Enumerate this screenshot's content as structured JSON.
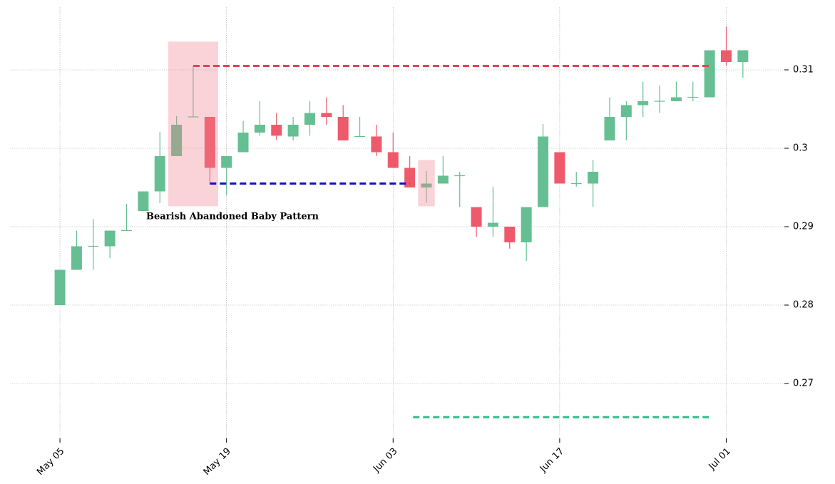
{
  "chart_data": {
    "type": "candlestick",
    "annotation": "Bearish Abandoned Baby Pattern",
    "categories": [
      "May 05",
      null,
      null,
      null,
      null,
      null,
      null,
      null,
      null,
      null,
      "May 19",
      null,
      null,
      null,
      null,
      null,
      null,
      null,
      null,
      null,
      "Jun 03",
      null,
      null,
      null,
      null,
      null,
      null,
      null,
      null,
      null,
      "Jun 17",
      null,
      null,
      null,
      null,
      null,
      null,
      null,
      null,
      null,
      "Jul 01",
      null
    ],
    "open": [
      0.28,
      0.2845,
      0.2875,
      0.2875,
      0.2895,
      0.292,
      0.2945,
      0.299,
      0.304,
      0.304,
      0.2975,
      0.2995,
      0.302,
      0.303,
      0.3015,
      0.303,
      0.3045,
      0.304,
      0.3015,
      0.3015,
      0.2995,
      0.2975,
      0.295,
      0.2955,
      0.2965,
      0.2925,
      0.29,
      0.29,
      0.288,
      0.2925,
      0.2995,
      0.2955,
      0.2955,
      0.301,
      0.304,
      0.3055,
      0.306,
      0.306,
      0.3065,
      0.3065,
      0.3125,
      0.311
    ],
    "high": [
      0.2845,
      0.2895,
      0.291,
      0.2895,
      0.2929,
      0.2945,
      0.3021,
      0.3041,
      0.3105,
      0.304,
      0.299,
      0.3035,
      0.306,
      0.3045,
      0.304,
      0.306,
      0.3065,
      0.3055,
      0.304,
      0.303,
      0.302,
      0.299,
      0.2971,
      0.299,
      0.297,
      0.2925,
      0.2951,
      0.29,
      0.2925,
      0.3031,
      0.2995,
      0.297,
      0.2985,
      0.3065,
      0.306,
      0.3085,
      0.308,
      0.3085,
      0.3085,
      0.3125,
      0.3155,
      0.3125
    ],
    "low": [
      0.28,
      0.2845,
      0.2845,
      0.286,
      0.2895,
      0.292,
      0.293,
      0.299,
      0.304,
      0.2955,
      0.294,
      0.2995,
      0.3016,
      0.3011,
      0.301,
      0.3016,
      0.303,
      0.301,
      0.3015,
      0.299,
      0.2975,
      0.295,
      0.2931,
      0.2955,
      0.2925,
      0.2887,
      0.2887,
      0.2872,
      0.2856,
      0.2925,
      0.2955,
      0.2951,
      0.2925,
      0.301,
      0.301,
      0.304,
      0.3045,
      0.306,
      0.306,
      0.3065,
      0.3105,
      0.309
    ],
    "close": [
      0.2845,
      0.2875,
      0.2875,
      0.2895,
      0.2895,
      0.2945,
      0.299,
      0.303,
      0.304,
      0.2975,
      0.299,
      0.302,
      0.303,
      0.3016,
      0.303,
      0.3045,
      0.304,
      0.301,
      0.3015,
      0.2995,
      0.2975,
      0.295,
      0.2955,
      0.2965,
      0.2965,
      0.29,
      0.2905,
      0.288,
      0.2925,
      0.3015,
      0.2955,
      0.2955,
      0.297,
      0.304,
      0.3055,
      0.306,
      0.306,
      0.3065,
      0.3065,
      0.3125,
      0.311,
      0.3125
    ],
    "up_color": "#66bf92",
    "down_color": "#ee5a6b",
    "ylim": [
      0.263,
      0.318
    ],
    "yticks": [
      0.27,
      0.28,
      0.29,
      0.3,
      0.31
    ],
    "grid": true,
    "levels": [
      {
        "value": 0.3105,
        "color": "#e0435a"
      },
      {
        "value": 0.2955,
        "color": "#1010c8"
      },
      {
        "value": 0.2657,
        "color": "#33bb88"
      }
    ],
    "highlights": [
      {
        "ymin": 0.2926,
        "ymax": 0.3136,
        "color": "#f08090"
      },
      {
        "ymin": 0.2926,
        "ymax": 0.2985,
        "color": "#f08090"
      }
    ]
  }
}
